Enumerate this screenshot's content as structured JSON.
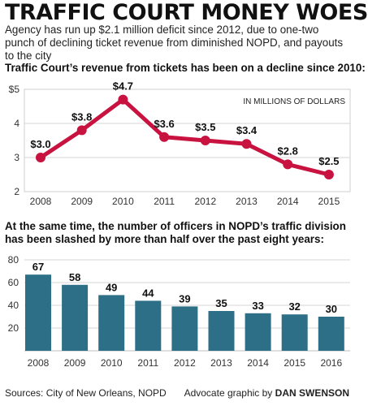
{
  "header": {
    "title": "TRAFFIC COURT MONEY WOES",
    "subtitle": "Agency has run up $2.1 million deficit since 2012, due to one-two punch of declining ticket revenue from diminished NOPD, and payouts to the city"
  },
  "footer": {
    "sources": "Sources: City of New Orleans, NOPD",
    "credit_prefix": "Advocate graphic by",
    "credit_name": "DAN SWENSON"
  },
  "colors": {
    "line": "#c8123f",
    "bar": "#2c6f87"
  },
  "chart_data": [
    {
      "type": "line",
      "title": "Traffic Court’s revenue from tickets has been on a decline since 2010:",
      "unit_label": "IN MILLIONS OF DOLLARS",
      "x": [
        "2008",
        "2009",
        "2010",
        "2011",
        "2012",
        "2013",
        "2014",
        "2015"
      ],
      "series": [
        {
          "values": [
            3.0,
            3.8,
            4.7,
            3.6,
            3.5,
            3.4,
            2.8,
            2.5
          ],
          "labels": [
            "$3.0",
            "$3.8",
            "$4.7",
            "$3.6",
            "$3.5",
            "$3.4",
            "$2.8",
            "$2.5"
          ]
        }
      ],
      "y_ticks": [
        "2",
        "3",
        "4",
        "$5"
      ],
      "ylim": [
        2,
        5
      ],
      "grid": true
    },
    {
      "type": "bar",
      "title": "At the same time, the number of officers in NOPD’s traffic division has been slashed by more than half over the past eight years:",
      "categories": [
        "2008",
        "2009",
        "2010",
        "2011",
        "2012",
        "2013",
        "2014",
        "2015",
        "2016"
      ],
      "values": [
        67,
        58,
        49,
        44,
        39,
        35,
        33,
        32,
        30
      ],
      "y_ticks": [
        "20",
        "40",
        "60",
        "80"
      ],
      "ylim": [
        0,
        80
      ],
      "grid": true
    }
  ]
}
